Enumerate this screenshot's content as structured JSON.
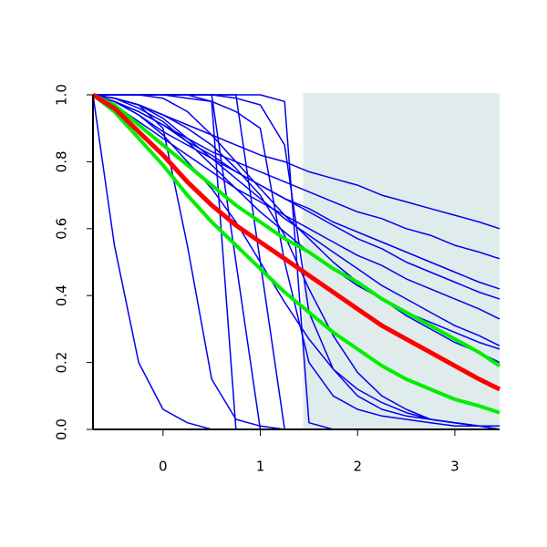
{
  "chart_data": {
    "type": "line",
    "x": [
      -0.72,
      -0.5,
      -0.25,
      0,
      0.25,
      0.5,
      0.75,
      1,
      1.25,
      1.5,
      1.75,
      2,
      2.25,
      2.5,
      2.75,
      3,
      3.25,
      3.46
    ],
    "xlim": [
      -0.72,
      3.46
    ],
    "ylim": [
      0,
      1
    ],
    "xticks": [
      0,
      1,
      2,
      3
    ],
    "yticks": [
      {
        "value": 0,
        "label": "0.0"
      },
      {
        "value": 0.2,
        "label": "0.2"
      },
      {
        "value": 0.4,
        "label": "0.4"
      },
      {
        "value": 0.6,
        "label": "0.6"
      },
      {
        "value": 0.8,
        "label": "0.8"
      },
      {
        "value": 1,
        "label": "1.0"
      }
    ],
    "shaded_region": {
      "xlim": [
        1.44,
        3.46
      ],
      "color": "#e0ecec"
    },
    "series": [
      {
        "color": "#0000ee",
        "values": [
          1,
          0.99,
          0.97,
          0.94,
          0.91,
          0.88,
          0.85,
          0.82,
          0.8,
          0.77,
          0.75,
          0.73,
          0.7,
          0.68,
          0.66,
          0.64,
          0.62,
          0.6
        ]
      },
      {
        "color": "#0000ee",
        "values": [
          1,
          0.98,
          0.95,
          0.91,
          0.87,
          0.83,
          0.8,
          0.77,
          0.74,
          0.71,
          0.68,
          0.65,
          0.63,
          0.6,
          0.58,
          0.55,
          0.53,
          0.51
        ]
      },
      {
        "color": "#0000ee",
        "values": [
          1,
          0.98,
          0.94,
          0.89,
          0.85,
          0.81,
          0.77,
          0.73,
          0.69,
          0.66,
          0.62,
          0.59,
          0.56,
          0.53,
          0.5,
          0.47,
          0.44,
          0.42
        ]
      },
      {
        "color": "#0000ee",
        "values": [
          1,
          0.97,
          0.92,
          0.87,
          0.82,
          0.77,
          0.72,
          0.68,
          0.64,
          0.6,
          0.56,
          0.52,
          0.49,
          0.45,
          0.42,
          0.39,
          0.36,
          0.33
        ]
      },
      {
        "color": "#0000ee",
        "values": [
          1,
          0.99,
          0.97,
          0.93,
          0.87,
          0.81,
          0.75,
          0.69,
          0.63,
          0.58,
          0.53,
          0.48,
          0.43,
          0.39,
          0.35,
          0.31,
          0.28,
          0.25
        ]
      },
      {
        "color": "#0000ee",
        "values": [
          1,
          1,
          1,
          0.99,
          0.95,
          0.88,
          0.8,
          0.72,
          0.64,
          0.57,
          0.5,
          0.44,
          0.39,
          0.34,
          0.3,
          0.26,
          0.23,
          0.2
        ]
      },
      {
        "color": "#0000ee",
        "values": [
          1,
          0.55,
          0.2,
          0.06,
          0.02,
          0,
          0,
          0,
          0,
          0,
          0,
          0,
          0,
          0,
          0,
          0,
          0,
          0
        ]
      },
      {
        "color": "#0000ee",
        "values": [
          1,
          0.99,
          0.97,
          0.9,
          0.55,
          0.15,
          0.03,
          0.01,
          0,
          0,
          0,
          0,
          0,
          0,
          0,
          0,
          0,
          0
        ]
      },
      {
        "color": "#0000ee",
        "values": [
          1,
          1,
          1,
          1,
          1,
          0.98,
          0,
          0,
          0,
          0,
          0,
          0,
          0,
          0,
          0,
          0,
          0,
          0
        ]
      },
      {
        "color": "#0000ee",
        "values": [
          1,
          1,
          1,
          1,
          1,
          1,
          0.5,
          0,
          0,
          0,
          0,
          0,
          0,
          0,
          0,
          0,
          0,
          0
        ]
      },
      {
        "color": "#0000ee",
        "values": [
          1,
          1,
          1,
          1,
          1,
          1,
          1,
          0.5,
          0,
          0,
          0,
          0,
          0,
          0,
          0,
          0,
          0,
          0
        ]
      },
      {
        "color": "#0000ee",
        "values": [
          1,
          1,
          1,
          1,
          1,
          1,
          1,
          1,
          0.98,
          0.02,
          0,
          0,
          0,
          0,
          0,
          0,
          0,
          0
        ]
      },
      {
        "color": "#0000ee",
        "values": [
          1,
          0.99,
          0.97,
          0.94,
          0.9,
          0.85,
          0.78,
          0.7,
          0.58,
          0.42,
          0.28,
          0.17,
          0.1,
          0.06,
          0.03,
          0.02,
          0.01,
          0
        ]
      },
      {
        "color": "#0000ee",
        "values": [
          1,
          0.98,
          0.94,
          0.88,
          0.8,
          0.72,
          0.62,
          0.5,
          0.38,
          0.27,
          0.18,
          0.12,
          0.08,
          0.05,
          0.03,
          0.02,
          0.01,
          0.01
        ]
      },
      {
        "color": "#0000ee",
        "values": [
          1,
          1,
          1,
          1,
          0.99,
          0.98,
          0.95,
          0.9,
          0.5,
          0.2,
          0.1,
          0.06,
          0.04,
          0.03,
          0.02,
          0.01,
          0.01,
          0
        ]
      },
      {
        "color": "#0000ee",
        "values": [
          1,
          1,
          1,
          1,
          1,
          1,
          0.99,
          0.97,
          0.85,
          0.35,
          0.18,
          0.1,
          0.06,
          0.04,
          0.03,
          0.02,
          0.01,
          0.01
        ]
      },
      {
        "color": "#0000ee",
        "values": [
          1,
          0.99,
          0.96,
          0.92,
          0.86,
          0.79,
          0.72,
          0.65,
          0.59,
          0.53,
          0.48,
          0.43,
          0.39,
          0.35,
          0.32,
          0.29,
          0.26,
          0.24
        ]
      },
      {
        "color": "#0000ee",
        "values": [
          1,
          0.98,
          0.95,
          0.91,
          0.86,
          0.82,
          0.77,
          0.73,
          0.69,
          0.65,
          0.61,
          0.57,
          0.54,
          0.5,
          0.47,
          0.44,
          0.41,
          0.39
        ]
      },
      {
        "color": "#00ee00",
        "width": 4,
        "values": [
          1,
          0.97,
          0.91,
          0.85,
          0.79,
          0.73,
          0.67,
          0.62,
          0.57,
          0.53,
          0.48,
          0.44,
          0.39,
          0.35,
          0.31,
          0.27,
          0.23,
          0.19
        ]
      },
      {
        "color": "#00ee00",
        "width": 4,
        "values": [
          1,
          0.95,
          0.87,
          0.79,
          0.7,
          0.62,
          0.55,
          0.48,
          0.41,
          0.35,
          0.29,
          0.24,
          0.19,
          0.15,
          0.12,
          0.09,
          0.07,
          0.05
        ]
      },
      {
        "color": "#ff0000",
        "width": 5,
        "values": [
          1,
          0.96,
          0.89,
          0.82,
          0.74,
          0.67,
          0.61,
          0.56,
          0.51,
          0.46,
          0.41,
          0.36,
          0.31,
          0.27,
          0.23,
          0.19,
          0.15,
          0.12
        ]
      }
    ]
  }
}
